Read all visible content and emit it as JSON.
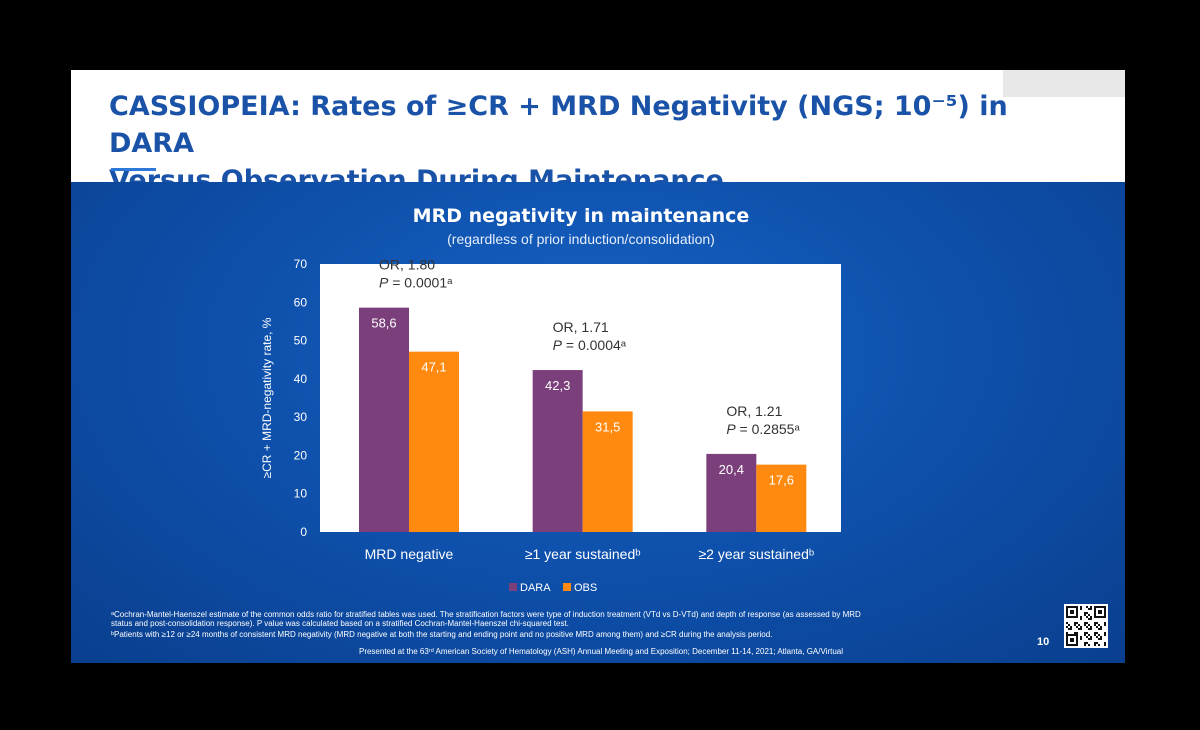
{
  "slide": {
    "title_line1": "CASSIOPEIA: Rates of ≥CR + MRD Negativity (NGS; 10⁻⁵) in DARA",
    "title_line2": "Versus Observation During Maintenance",
    "footnote_a_line1": "ᵃCochran-Mantel-Haenszel estimate of the common odds ratio for stratified tables was used. The stratification factors were type of induction treatment (VTd vs D-VTd) and depth of response (as assessed by MRD",
    "footnote_a_line2": "status and post-consolidation response). P value was calculated based on a stratified Cochran-Mantel-Haenszel chi-squared test.",
    "footnote_b": "ᵇPatients with ≥12 or ≥24 months of consistent MRD negativity (MRD negative at both the starting and ending point and no positive MRD among them) and ≥CR during the analysis period.",
    "presented": "Presented at the 63ʳᵈ American Society of Hematology (ASH) Annual Meeting and Exposition; December 11-14, 2021; Atlanta, GA/Virtual",
    "page_number": "10"
  },
  "colors": {
    "title": "#1a52a8",
    "background": "#0d4ea8",
    "dara": "#7b3f7c",
    "obs": "#ff8a0f",
    "plot_bg": "#ffffff"
  },
  "chart_data": {
    "type": "bar",
    "title": "MRD negativity in maintenance",
    "subtitle": "(regardless of prior induction/consolidation)",
    "ylabel": "≥CR + MRD-negativity rate, %",
    "ylim": [
      0,
      70
    ],
    "yticks": [
      "0",
      "10",
      "20",
      "30",
      "40",
      "50",
      "60",
      "70"
    ],
    "categories": [
      "MRD negative",
      "≥1 year sustainedᵇ",
      "≥2 year sustainedᵇ"
    ],
    "series": [
      {
        "name": "DARA",
        "color": "#7b3f7c",
        "values": [
          58.6,
          42.3,
          20.4
        ],
        "labels": [
          "58,6",
          "42,3",
          "20,4"
        ]
      },
      {
        "name": "OBS",
        "color": "#ff8a0f",
        "values": [
          47.1,
          31.5,
          17.6
        ],
        "labels": [
          "47,1",
          "31,5",
          "17,6"
        ]
      }
    ],
    "annotations": [
      {
        "or": "OR, 1.80",
        "p_label": "P",
        "p_value": " = 0.0001ᵃ"
      },
      {
        "or": "OR, 1.71",
        "p_label": "P",
        "p_value": " = 0.0004ᵃ"
      },
      {
        "or": "OR, 1.21",
        "p_label": "P",
        "p_value": " = 0.2855ᵃ"
      }
    ],
    "legend_position": "bottom-center"
  }
}
